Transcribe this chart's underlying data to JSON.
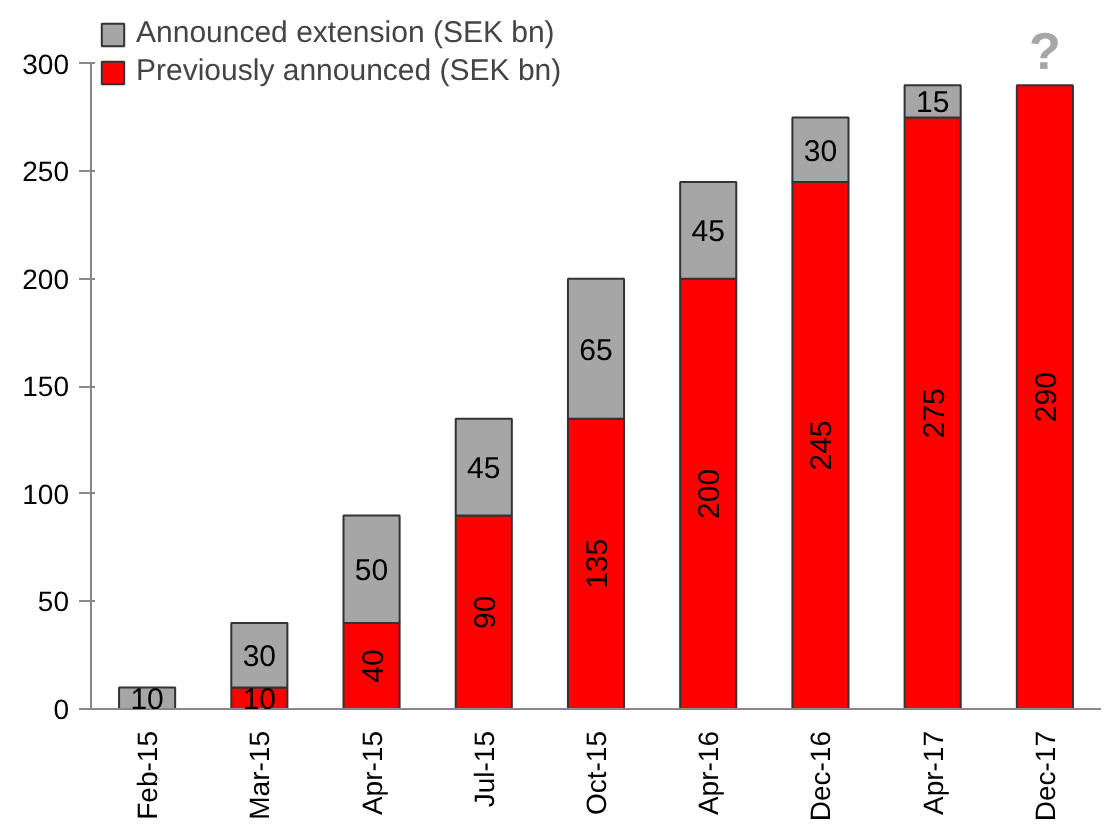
{
  "chart_data": {
    "type": "bar",
    "stacked": true,
    "categories": [
      "Feb-15",
      "Mar-15",
      "Apr-15",
      "Jul-15",
      "Oct-15",
      "Apr-16",
      "Dec-16",
      "Apr-17",
      "Dec-17"
    ],
    "series": [
      {
        "name": "Previously announced (SEK bn)",
        "color": "#ff0000",
        "values": [
          0,
          10,
          40,
          90,
          135,
          200,
          245,
          275,
          290
        ],
        "value_labels": [
          null,
          "10",
          "40",
          "90",
          "135",
          "200",
          "245",
          "275",
          "290"
        ]
      },
      {
        "name": "Announced extension (SEK bn)",
        "color": "#a6a6a6",
        "values": [
          10,
          30,
          50,
          45,
          65,
          45,
          30,
          15,
          null
        ],
        "value_labels": [
          "10",
          "30",
          "50",
          "45",
          "65",
          "45",
          "30",
          "15",
          null
        ]
      }
    ],
    "ylim": [
      0,
      300
    ],
    "yticks": [
      0,
      50,
      100,
      150,
      200,
      250,
      300
    ],
    "grid": false,
    "legend": "top left",
    "annotations": [
      {
        "text": "?",
        "x": "Dec-17",
        "y": 290
      }
    ]
  }
}
